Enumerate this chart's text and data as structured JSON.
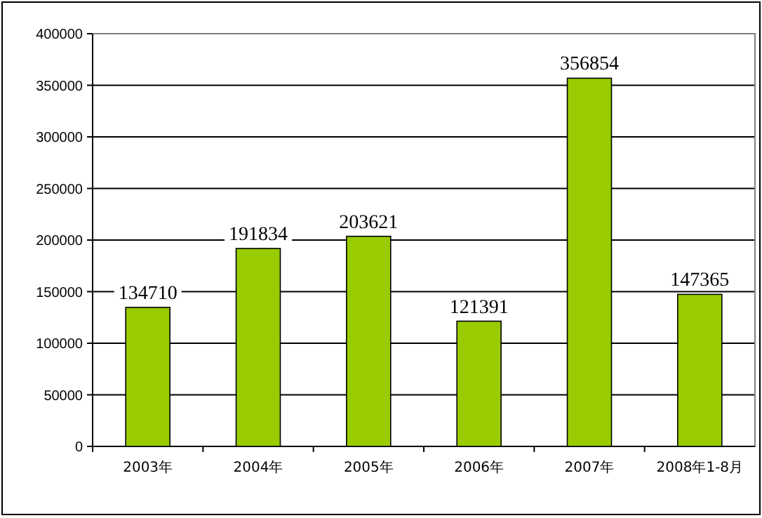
{
  "chart_data": {
    "type": "bar",
    "categories": [
      "2003年",
      "2004年",
      "2005年",
      "2006年",
      "2007年",
      "2008年1-8月"
    ],
    "values": [
      134710,
      191834,
      203621,
      121391,
      356854,
      147365
    ],
    "color": "#99cc00",
    "ylim": [
      0,
      400000
    ],
    "yticks": [
      0,
      50000,
      100000,
      150000,
      200000,
      250000,
      300000,
      350000,
      400000
    ],
    "grid": "y",
    "data_labels": true
  }
}
